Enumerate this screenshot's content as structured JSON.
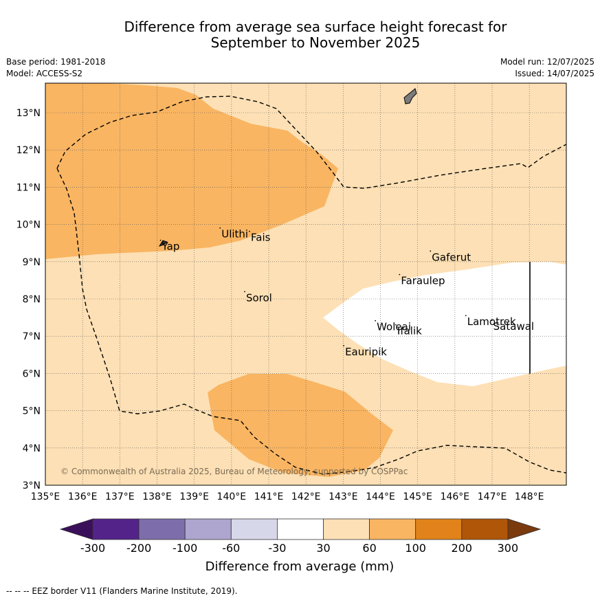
{
  "title_line1": "Difference from average sea surface height forecast for",
  "title_line2": "September to November 2025",
  "base_period": "Base period: 1981-2018",
  "model": "Model: ACCESS-S2",
  "model_run": "Model run: 12/07/2025",
  "issued": "Issued: 14/07/2025",
  "map": {
    "lon_ticks": [
      "135°E",
      "136°E",
      "137°E",
      "138°E",
      "139°E",
      "140°E",
      "141°E",
      "142°E",
      "143°E",
      "144°E",
      "145°E",
      "146°E",
      "147°E",
      "148°E"
    ],
    "lat_ticks": [
      "3°N",
      "4°N",
      "5°N",
      "6°N",
      "7°N",
      "8°N",
      "9°N",
      "10°N",
      "11°N",
      "12°N",
      "13°N"
    ],
    "places": [
      {
        "name": "Ulithi",
        "lon": 139.73,
        "lat": 9.85
      },
      {
        "name": "Fais",
        "lon": 140.52,
        "lat": 9.76
      },
      {
        "name": "Yap",
        "lon": 138.13,
        "lat": 9.52
      },
      {
        "name": "Gaferut",
        "lon": 145.38,
        "lat": 9.23
      },
      {
        "name": "Faraulep",
        "lon": 144.55,
        "lat": 8.6
      },
      {
        "name": "Sorol",
        "lon": 140.39,
        "lat": 8.14
      },
      {
        "name": "Lamotrek",
        "lon": 146.33,
        "lat": 7.5
      },
      {
        "name": "Woleai",
        "lon": 143.9,
        "lat": 7.36
      },
      {
        "name": "Ifalik",
        "lon": 144.45,
        "lat": 7.25
      },
      {
        "name": "Satawal",
        "lon": 147.03,
        "lat": 7.37
      },
      {
        "name": "Eauripik",
        "lon": 143.05,
        "lat": 6.69
      }
    ],
    "copyright": "© Commonwealth of Australia 2025, Bureau of Meteorology, supported by COSPPac"
  },
  "colorbar": {
    "ticks": [
      "-300",
      "-200",
      "-100",
      "-60",
      "-30",
      "30",
      "60",
      "100",
      "200",
      "300"
    ],
    "colors": [
      "#3b0f5a",
      "#54238a",
      "#7d6eab",
      "#aea6cf",
      "#d7d7ea",
      "#ffffff",
      "#fde0b5",
      "#f9b562",
      "#e1831a",
      "#b05608",
      "#7a3a0e"
    ],
    "label": "Difference from average (mm)"
  },
  "eez_legend": "-- -- -- EEZ border V11 (Flanders Marine Institute, 2019)."
}
